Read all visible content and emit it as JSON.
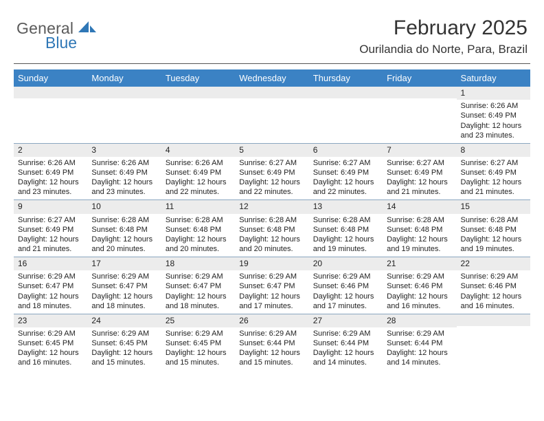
{
  "logo": {
    "word1": "General",
    "word2": "Blue",
    "shape_color": "#2f77b6",
    "text1_color": "#5a5a5a"
  },
  "title": "February 2025",
  "location": "Ourilandia do Norte, Para, Brazil",
  "header_bg": "#3b82c4",
  "header_text_color": "#ffffff",
  "grid_line_color": "#8aa6c0",
  "daynum_bg": "#ececec",
  "days": [
    "Sunday",
    "Monday",
    "Tuesday",
    "Wednesday",
    "Thursday",
    "Friday",
    "Saturday"
  ],
  "weeks": [
    [
      {
        "n": "",
        "lines": []
      },
      {
        "n": "",
        "lines": []
      },
      {
        "n": "",
        "lines": []
      },
      {
        "n": "",
        "lines": []
      },
      {
        "n": "",
        "lines": []
      },
      {
        "n": "",
        "lines": []
      },
      {
        "n": "1",
        "lines": [
          "Sunrise: 6:26 AM",
          "Sunset: 6:49 PM",
          "Daylight: 12 hours and 23 minutes."
        ]
      }
    ],
    [
      {
        "n": "2",
        "lines": [
          "Sunrise: 6:26 AM",
          "Sunset: 6:49 PM",
          "Daylight: 12 hours and 23 minutes."
        ]
      },
      {
        "n": "3",
        "lines": [
          "Sunrise: 6:26 AM",
          "Sunset: 6:49 PM",
          "Daylight: 12 hours and 23 minutes."
        ]
      },
      {
        "n": "4",
        "lines": [
          "Sunrise: 6:26 AM",
          "Sunset: 6:49 PM",
          "Daylight: 12 hours and 22 minutes."
        ]
      },
      {
        "n": "5",
        "lines": [
          "Sunrise: 6:27 AM",
          "Sunset: 6:49 PM",
          "Daylight: 12 hours and 22 minutes."
        ]
      },
      {
        "n": "6",
        "lines": [
          "Sunrise: 6:27 AM",
          "Sunset: 6:49 PM",
          "Daylight: 12 hours and 22 minutes."
        ]
      },
      {
        "n": "7",
        "lines": [
          "Sunrise: 6:27 AM",
          "Sunset: 6:49 PM",
          "Daylight: 12 hours and 21 minutes."
        ]
      },
      {
        "n": "8",
        "lines": [
          "Sunrise: 6:27 AM",
          "Sunset: 6:49 PM",
          "Daylight: 12 hours and 21 minutes."
        ]
      }
    ],
    [
      {
        "n": "9",
        "lines": [
          "Sunrise: 6:27 AM",
          "Sunset: 6:49 PM",
          "Daylight: 12 hours and 21 minutes."
        ]
      },
      {
        "n": "10",
        "lines": [
          "Sunrise: 6:28 AM",
          "Sunset: 6:48 PM",
          "Daylight: 12 hours and 20 minutes."
        ]
      },
      {
        "n": "11",
        "lines": [
          "Sunrise: 6:28 AM",
          "Sunset: 6:48 PM",
          "Daylight: 12 hours and 20 minutes."
        ]
      },
      {
        "n": "12",
        "lines": [
          "Sunrise: 6:28 AM",
          "Sunset: 6:48 PM",
          "Daylight: 12 hours and 20 minutes."
        ]
      },
      {
        "n": "13",
        "lines": [
          "Sunrise: 6:28 AM",
          "Sunset: 6:48 PM",
          "Daylight: 12 hours and 19 minutes."
        ]
      },
      {
        "n": "14",
        "lines": [
          "Sunrise: 6:28 AM",
          "Sunset: 6:48 PM",
          "Daylight: 12 hours and 19 minutes."
        ]
      },
      {
        "n": "15",
        "lines": [
          "Sunrise: 6:28 AM",
          "Sunset: 6:48 PM",
          "Daylight: 12 hours and 19 minutes."
        ]
      }
    ],
    [
      {
        "n": "16",
        "lines": [
          "Sunrise: 6:29 AM",
          "Sunset: 6:47 PM",
          "Daylight: 12 hours and 18 minutes."
        ]
      },
      {
        "n": "17",
        "lines": [
          "Sunrise: 6:29 AM",
          "Sunset: 6:47 PM",
          "Daylight: 12 hours and 18 minutes."
        ]
      },
      {
        "n": "18",
        "lines": [
          "Sunrise: 6:29 AM",
          "Sunset: 6:47 PM",
          "Daylight: 12 hours and 18 minutes."
        ]
      },
      {
        "n": "19",
        "lines": [
          "Sunrise: 6:29 AM",
          "Sunset: 6:47 PM",
          "Daylight: 12 hours and 17 minutes."
        ]
      },
      {
        "n": "20",
        "lines": [
          "Sunrise: 6:29 AM",
          "Sunset: 6:46 PM",
          "Daylight: 12 hours and 17 minutes."
        ]
      },
      {
        "n": "21",
        "lines": [
          "Sunrise: 6:29 AM",
          "Sunset: 6:46 PM",
          "Daylight: 12 hours and 16 minutes."
        ]
      },
      {
        "n": "22",
        "lines": [
          "Sunrise: 6:29 AM",
          "Sunset: 6:46 PM",
          "Daylight: 12 hours and 16 minutes."
        ]
      }
    ],
    [
      {
        "n": "23",
        "lines": [
          "Sunrise: 6:29 AM",
          "Sunset: 6:45 PM",
          "Daylight: 12 hours and 16 minutes."
        ]
      },
      {
        "n": "24",
        "lines": [
          "Sunrise: 6:29 AM",
          "Sunset: 6:45 PM",
          "Daylight: 12 hours and 15 minutes."
        ]
      },
      {
        "n": "25",
        "lines": [
          "Sunrise: 6:29 AM",
          "Sunset: 6:45 PM",
          "Daylight: 12 hours and 15 minutes."
        ]
      },
      {
        "n": "26",
        "lines": [
          "Sunrise: 6:29 AM",
          "Sunset: 6:44 PM",
          "Daylight: 12 hours and 15 minutes."
        ]
      },
      {
        "n": "27",
        "lines": [
          "Sunrise: 6:29 AM",
          "Sunset: 6:44 PM",
          "Daylight: 12 hours and 14 minutes."
        ]
      },
      {
        "n": "28",
        "lines": [
          "Sunrise: 6:29 AM",
          "Sunset: 6:44 PM",
          "Daylight: 12 hours and 14 minutes."
        ]
      },
      {
        "n": "",
        "lines": []
      }
    ]
  ]
}
